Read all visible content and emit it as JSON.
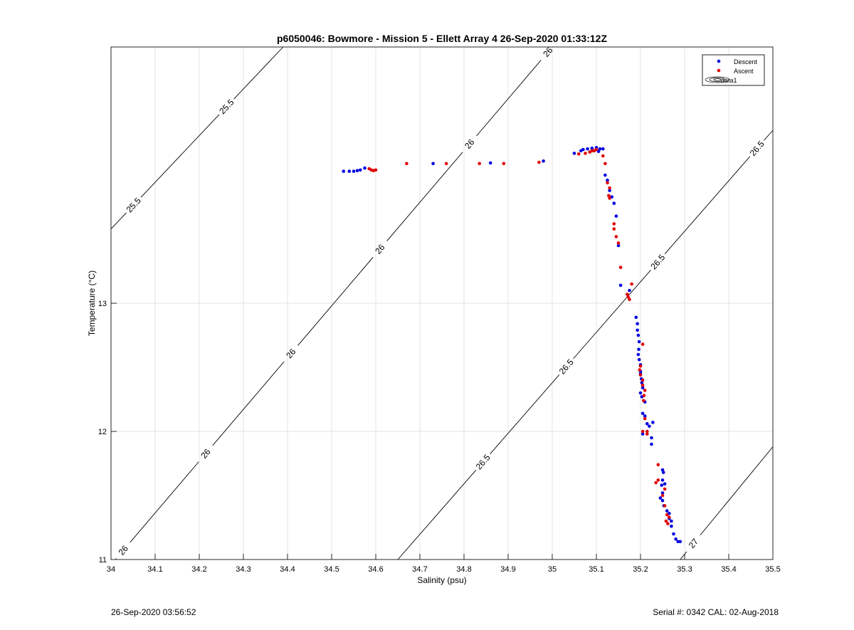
{
  "chart_data": {
    "type": "scatter",
    "title": "p6050046: Bowmore - Mission 5 - Ellett Array 4 26-Sep-2020 01:33:12Z",
    "xlabel": "Salinity (psu)",
    "ylabel": "Temperature (°C)",
    "xlim": [
      34,
      35.5
    ],
    "ylim": [
      11,
      15
    ],
    "xticks": [
      34,
      34.1,
      34.2,
      34.3,
      34.4,
      34.5,
      34.6,
      34.7,
      34.8,
      34.9,
      35,
      35.1,
      35.2,
      35.3,
      35.4,
      35.5
    ],
    "xtick_labels": [
      "34",
      "34.1",
      "34.2",
      "34.3",
      "34.4",
      "34.5",
      "34.6",
      "34.7",
      "34.8",
      "34.9",
      "35",
      "35.1",
      "35.2",
      "35.3",
      "35.4",
      "35.5"
    ],
    "yticks": [
      11,
      12,
      13
    ],
    "ytick_labels": [
      "11",
      "12",
      "13"
    ],
    "grid": true,
    "legend_position": "top-right",
    "legend": [
      "Descent",
      "Ascent",
      "data1"
    ],
    "colors": {
      "descent": "#0000e0",
      "ascent": "#e00000",
      "contour": "#000000",
      "grid": "#e3e3e3"
    },
    "contours": [
      {
        "label": "25.5",
        "x": [
          34.0,
          34.39
        ],
        "y": [
          13.58,
          15.0
        ],
        "label_positions": [
          [
            34.05,
            13.77
          ],
          [
            34.26,
            14.54
          ]
        ]
      },
      {
        "label": "26",
        "x": [
          34.01,
          35.0
        ],
        "y": [
          11.0,
          15.0
        ],
        "label_positions": [
          [
            34.025,
            11.08
          ],
          [
            34.21,
            11.84
          ],
          [
            34.4,
            12.63
          ],
          [
            34.6,
            13.45
          ],
          [
            34.8,
            14.28
          ],
          [
            34.98,
            14.99
          ]
        ]
      },
      {
        "label": "26.5",
        "x": [
          34.65,
          35.5
        ],
        "y": [
          11.0,
          14.35
        ],
        "label_positions": [
          [
            34.84,
            11.77
          ],
          [
            35.03,
            12.51
          ],
          [
            35.23,
            13.35
          ],
          [
            35.46,
            14.22
          ]
        ]
      },
      {
        "label": "27",
        "x": [
          35.29,
          35.5
        ],
        "y": [
          11.0,
          11.88
        ],
        "label_positions": [
          [
            35.315,
            11.14
          ]
        ]
      }
    ],
    "series": [
      {
        "name": "Descent",
        "points": [
          [
            34.527,
            14.03
          ],
          [
            34.54,
            14.03
          ],
          [
            34.55,
            14.03
          ],
          [
            34.558,
            14.035
          ],
          [
            34.565,
            14.04
          ],
          [
            34.575,
            14.055
          ],
          [
            34.73,
            14.09
          ],
          [
            34.86,
            14.095
          ],
          [
            34.98,
            14.11
          ],
          [
            35.05,
            14.17
          ],
          [
            35.065,
            14.19
          ],
          [
            35.07,
            14.2
          ],
          [
            35.08,
            14.205
          ],
          [
            35.09,
            14.21
          ],
          [
            35.1,
            14.215
          ],
          [
            35.108,
            14.205
          ],
          [
            35.115,
            14.205
          ],
          [
            35.095,
            14.19
          ],
          [
            35.105,
            14.185
          ],
          [
            35.12,
            14.0
          ],
          [
            35.125,
            13.96
          ],
          [
            35.13,
            13.88
          ],
          [
            35.135,
            13.83
          ],
          [
            35.14,
            13.78
          ],
          [
            35.145,
            13.68
          ],
          [
            35.15,
            13.45
          ],
          [
            35.155,
            13.14
          ],
          [
            35.175,
            13.1
          ],
          [
            35.19,
            12.89
          ],
          [
            35.193,
            12.84
          ],
          [
            35.193,
            12.79
          ],
          [
            35.195,
            12.75
          ],
          [
            35.197,
            12.7
          ],
          [
            35.196,
            12.64
          ],
          [
            35.195,
            12.6
          ],
          [
            35.197,
            12.56
          ],
          [
            35.2,
            12.52
          ],
          [
            35.2,
            12.47
          ],
          [
            35.2,
            12.45
          ],
          [
            35.202,
            12.41
          ],
          [
            35.203,
            12.38
          ],
          [
            35.205,
            12.34
          ],
          [
            35.2,
            12.3
          ],
          [
            35.203,
            12.27
          ],
          [
            35.21,
            12.23
          ],
          [
            35.205,
            12.14
          ],
          [
            35.21,
            12.12
          ],
          [
            35.215,
            12.06
          ],
          [
            35.22,
            12.04
          ],
          [
            35.228,
            12.07
          ],
          [
            35.225,
            11.95
          ],
          [
            35.205,
            11.98
          ],
          [
            35.225,
            11.9
          ],
          [
            35.25,
            11.7
          ],
          [
            35.252,
            11.68
          ],
          [
            35.25,
            11.62
          ],
          [
            35.255,
            11.59
          ],
          [
            35.248,
            11.58
          ],
          [
            35.25,
            11.52
          ],
          [
            35.245,
            11.48
          ],
          [
            35.25,
            11.46
          ],
          [
            35.253,
            11.42
          ],
          [
            35.26,
            11.38
          ],
          [
            35.265,
            11.36
          ],
          [
            35.265,
            11.32
          ],
          [
            35.27,
            11.3
          ],
          [
            35.27,
            11.26
          ],
          [
            35.275,
            11.2
          ],
          [
            35.28,
            11.16
          ],
          [
            35.285,
            11.14
          ],
          [
            35.29,
            11.14
          ]
        ]
      },
      {
        "name": "Ascent",
        "points": [
          [
            34.585,
            14.05
          ],
          [
            34.59,
            14.04
          ],
          [
            34.595,
            14.035
          ],
          [
            34.6,
            14.04
          ],
          [
            34.67,
            14.09
          ],
          [
            34.76,
            14.09
          ],
          [
            34.835,
            14.09
          ],
          [
            34.89,
            14.09
          ],
          [
            34.97,
            14.1
          ],
          [
            35.06,
            14.165
          ],
          [
            35.075,
            14.17
          ],
          [
            35.085,
            14.18
          ],
          [
            35.09,
            14.19
          ],
          [
            35.095,
            14.19
          ],
          [
            35.1,
            14.2
          ],
          [
            35.115,
            14.15
          ],
          [
            35.12,
            14.09
          ],
          [
            35.125,
            13.94
          ],
          [
            35.13,
            13.9
          ],
          [
            35.128,
            13.84
          ],
          [
            35.13,
            13.82
          ],
          [
            35.14,
            13.62
          ],
          [
            35.14,
            13.58
          ],
          [
            35.145,
            13.52
          ],
          [
            35.15,
            13.47
          ],
          [
            35.155,
            13.28
          ],
          [
            35.17,
            13.07
          ],
          [
            35.172,
            13.05
          ],
          [
            35.175,
            13.03
          ],
          [
            35.18,
            13.15
          ],
          [
            35.205,
            12.68
          ],
          [
            35.2,
            12.51
          ],
          [
            35.198,
            12.48
          ],
          [
            35.2,
            12.44
          ],
          [
            35.205,
            12.4
          ],
          [
            35.205,
            12.36
          ],
          [
            35.21,
            12.32
          ],
          [
            35.208,
            12.28
          ],
          [
            35.207,
            12.24
          ],
          [
            35.21,
            12.1
          ],
          [
            35.205,
            12.0
          ],
          [
            35.215,
            12.0
          ],
          [
            35.215,
            11.98
          ],
          [
            35.24,
            11.74
          ],
          [
            35.24,
            11.62
          ],
          [
            35.235,
            11.6
          ],
          [
            35.255,
            11.55
          ],
          [
            35.25,
            11.5
          ],
          [
            35.255,
            11.42
          ],
          [
            35.26,
            11.35
          ],
          [
            35.265,
            11.33
          ],
          [
            35.258,
            11.3
          ],
          [
            35.262,
            11.28
          ]
        ]
      }
    ]
  },
  "footer": {
    "left": "26-Sep-2020 03:56:52",
    "right": "Serial #: 0342  CAL: 02-Aug-2018"
  }
}
